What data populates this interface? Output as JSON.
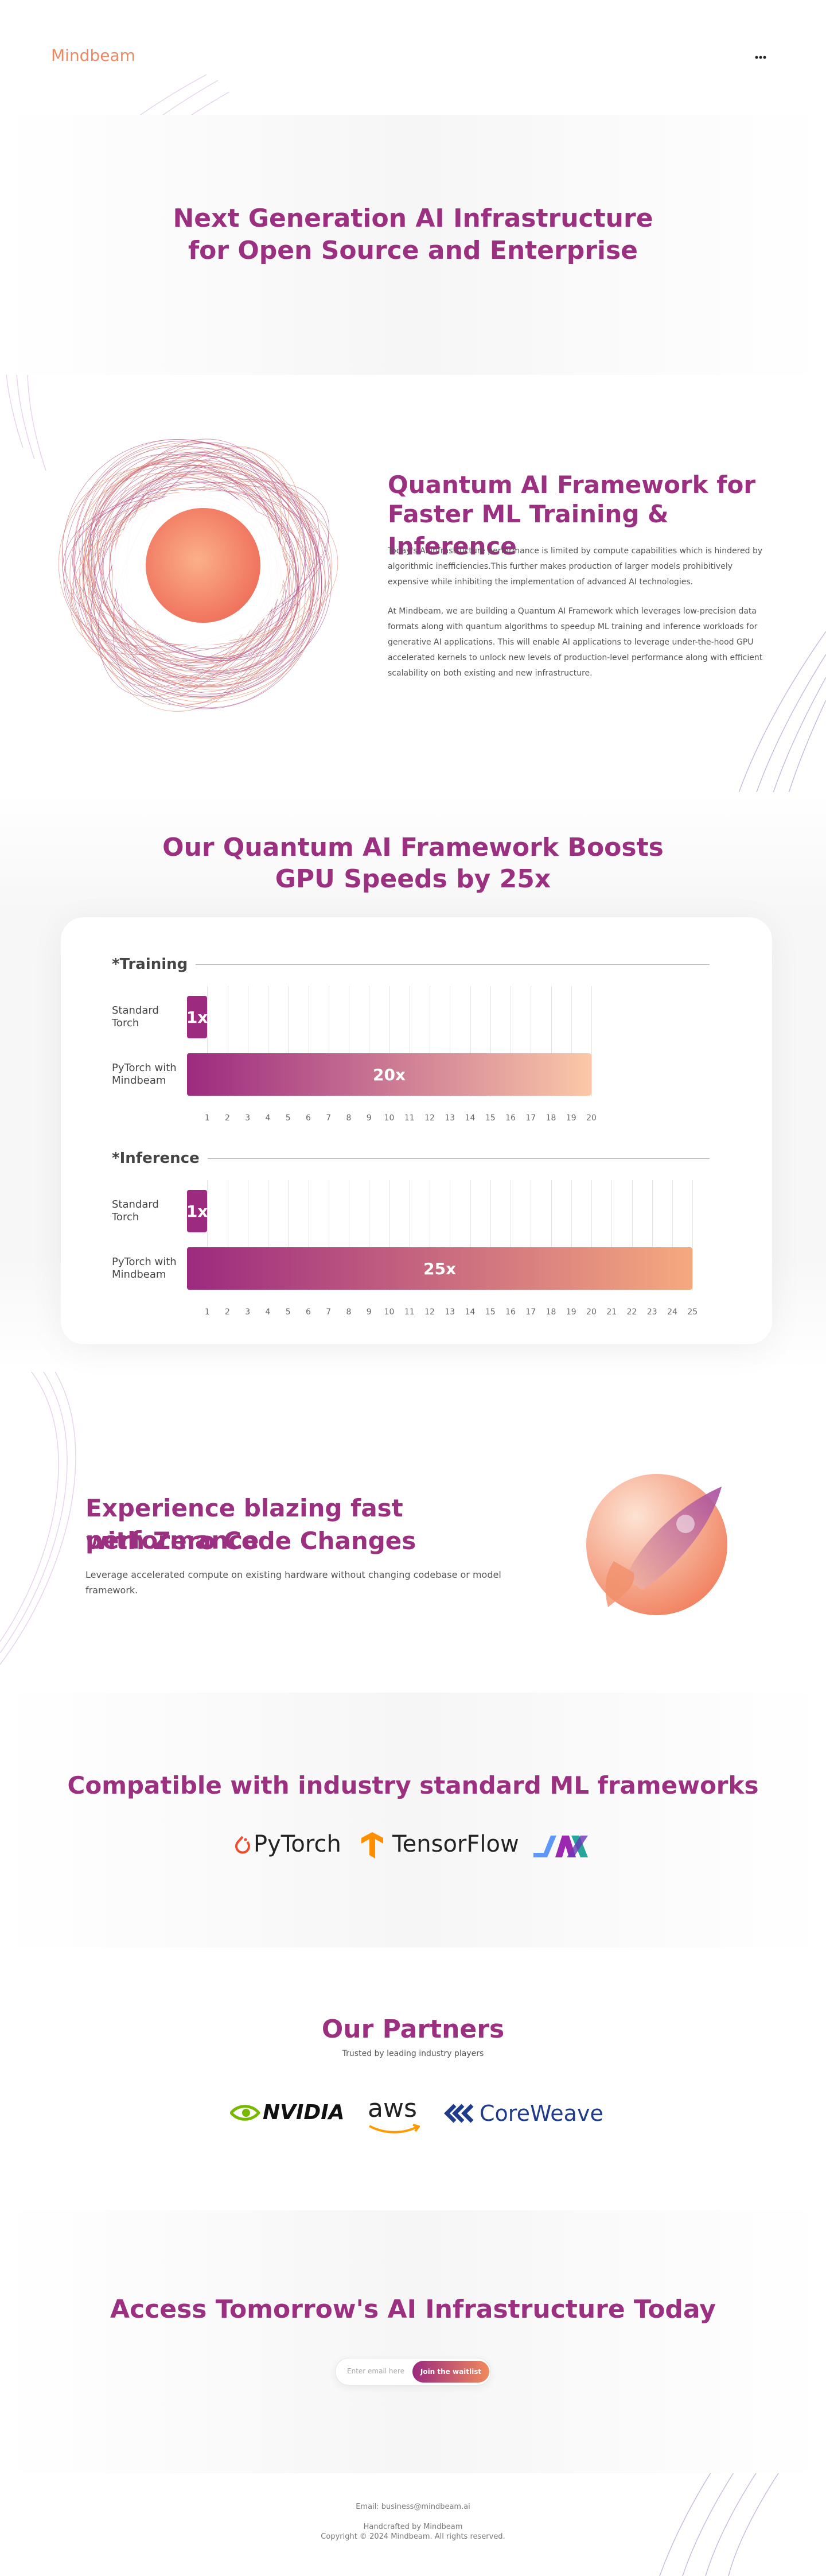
{
  "header": {
    "logo": "Mindbeam"
  },
  "hero": {
    "title_lines": [
      "Next Generation AI Infrastructure",
      "for Open Source and Enterprise"
    ]
  },
  "framework": {
    "title_lines": [
      "Quantum AI Framework for",
      "Faster ML Training & Inference"
    ],
    "paragraphs": [
      "Today's AI infrastructure performance is limited by compute capabilities which is hindered by algorithmic inefficiencies.This further makes production of larger models prohibitively expensive while inhibiting the implementation of advanced AI technologies.",
      "At Mindbeam, we are building a Quantum AI Framework which leverages low-precision data formats along with quantum algorithms to speedup ML training and inference workloads for generative AI applications. This will enable AI applications to leverage under-the-hood GPU accelerated kernels to unlock new levels of production-level performance along with efficient scalability on both existing and new infrastructure."
    ]
  },
  "boost": {
    "title_lines": [
      "Our Quantum AI Framework Boosts",
      "GPU Speeds by 25x"
    ]
  },
  "chart_data": [
    {
      "type": "bar",
      "title": "*Training",
      "categories": [
        "Standard Torch",
        "PyTorch with Mindbeam"
      ],
      "values": [
        1,
        20
      ],
      "value_labels": [
        "1x",
        "20x"
      ],
      "colors": [
        "#9c2a7f",
        "#fbc8a8"
      ],
      "xlim": [
        0,
        20
      ],
      "xticks": [
        1,
        2,
        3,
        4,
        5,
        6,
        7,
        8,
        9,
        10,
        11,
        12,
        13,
        14,
        15,
        16,
        17,
        18,
        19,
        20
      ],
      "grid": true
    },
    {
      "type": "bar",
      "title": "*Inference",
      "categories": [
        "Standard Torch",
        "PyTorch with Mindbeam"
      ],
      "values": [
        1,
        25
      ],
      "value_labels": [
        "1x",
        "25x"
      ],
      "colors": [
        "#9c2a7f",
        "#f6a97f"
      ],
      "xlim": [
        0,
        25
      ],
      "xticks": [
        1,
        2,
        3,
        4,
        5,
        6,
        7,
        8,
        9,
        10,
        11,
        12,
        13,
        14,
        15,
        16,
        17,
        18,
        19,
        20,
        21,
        22,
        23,
        24,
        25
      ],
      "grid": true
    }
  ],
  "performance": {
    "title_lines": [
      "Experience blazing fast performance",
      "with Zero Code Changes"
    ],
    "description": "Leverage accelerated compute on existing hardware without changing codebase or model framework."
  },
  "frameworks": {
    "title": "Compatible with industry standard ML frameworks",
    "logos": [
      "PyTorch",
      "TensorFlow"
    ]
  },
  "partners": {
    "title": "Our Partners",
    "subtitle": "Trusted by leading industry players",
    "logos": [
      "NVIDIA",
      "aws",
      "CoreWeave"
    ]
  },
  "cta": {
    "title": "Access Tomorrow's AI Infrastructure Today",
    "input_placeholder": "Enter email here",
    "button": "Join the waitlist"
  },
  "footer": {
    "email": "Email: business@mindbeam.ai",
    "handcrafted": "Handcrafted by Mindbeam",
    "copyright": "Copyright © 2024 Mindbeam. All rights reserved."
  }
}
